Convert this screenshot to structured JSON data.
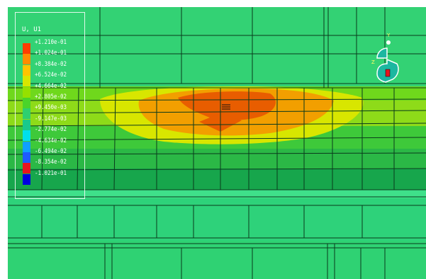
{
  "legend": {
    "title": "U, U1",
    "entries": [
      {
        "label": "+1.210e-01",
        "color": "#ff3d00"
      },
      {
        "label": "+1.024e-01",
        "color": "#ff8c00"
      },
      {
        "label": "+8.384e-02",
        "color": "#ffc400"
      },
      {
        "label": "+6.524e-02",
        "color": "#d8e600"
      },
      {
        "label": "+4.664e-02",
        "color": "#96e000"
      },
      {
        "label": "+2.805e-02",
        "color": "#4ad42a"
      },
      {
        "label": "+9.450e-03",
        "color": "#2ecf6f"
      },
      {
        "label": "-9.147e-03",
        "color": "#19c98c"
      },
      {
        "label": "-2.774e-02",
        "color": "#00e0ea"
      },
      {
        "label": "-4.634e-02",
        "color": "#0fa0ff"
      },
      {
        "label": "-6.494e-02",
        "color": "#1e5cff"
      },
      {
        "label": "-8.354e-02",
        "color": "#e8141e"
      },
      {
        "label": "-1.021e-01",
        "color": "#0000e0"
      }
    ]
  },
  "triad": {
    "axis_y_label": "Y",
    "axis_z_label": "Z"
  },
  "colors": {
    "background": "#2ecf6f",
    "mesh_line": "#0a3a1c",
    "hot": "#e85d00",
    "warm": "#f29f00",
    "yellow": "#d8e600",
    "light_green": "#8edb19",
    "mid_green": "#3ec93a",
    "dark_green": "#14a84a"
  }
}
